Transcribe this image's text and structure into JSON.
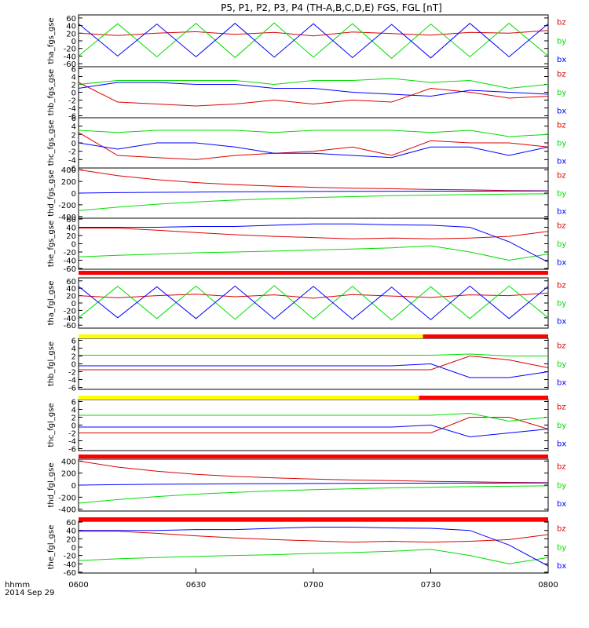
{
  "title": "P5, P1, P2, P3, P4 (TH-A,B,C,D,E) FGS, FGL [nT]",
  "time_axis": {
    "label_line1": "hhmm",
    "label_line2": "2014 Sep 29",
    "ticks": [
      "0600",
      "0630",
      "0700",
      "0730",
      "0800"
    ]
  },
  "legend_labels": [
    "bz",
    "by",
    "bx"
  ],
  "colors": {
    "bx": "#0000ff",
    "by": "#00dd00",
    "bz": "#dd0000",
    "axis": "#000000"
  },
  "chart_data": [
    {
      "type": "line",
      "ylabel": "tha_fgs_gse",
      "yticks": [
        "60",
        "40",
        "20",
        "0",
        "-20",
        "-40",
        "-60"
      ],
      "ylim": [
        -68,
        68
      ],
      "x": [
        "0600",
        "0610",
        "0620",
        "0630",
        "0640",
        "0650",
        "0700",
        "0710",
        "0720",
        "0730",
        "0740",
        "0750",
        "0800"
      ],
      "series": [
        {
          "name": "bz",
          "values": [
            20,
            14,
            20,
            24,
            17,
            22,
            13,
            23,
            19,
            15,
            22,
            20,
            27
          ]
        },
        {
          "name": "by",
          "values": [
            -40,
            45,
            -42,
            46,
            -44,
            47,
            -43,
            45,
            -46,
            44,
            -42,
            46,
            -40
          ]
        },
        {
          "name": "bx",
          "values": [
            45,
            -40,
            44,
            -42,
            46,
            -43,
            45,
            -44,
            43,
            -45,
            46,
            -42,
            45
          ]
        }
      ]
    },
    {
      "type": "line",
      "ylabel": "thb_fgs_gse",
      "yticks": [
        "6",
        "4",
        "2",
        "0",
        "-2",
        "-4",
        "-6"
      ],
      "ylim": [
        -6.5,
        6.5
      ],
      "x": [
        "0600",
        "0610",
        "0620",
        "0630",
        "0640",
        "0650",
        "0700",
        "0710",
        "0720",
        "0730",
        "0740",
        "0750",
        "0800"
      ],
      "series": [
        {
          "name": "bz",
          "values": [
            2.5,
            -2.5,
            -3,
            -3.5,
            -3,
            -2,
            -3,
            -2,
            -2.5,
            1,
            0,
            -1.5,
            -1
          ]
        },
        {
          "name": "by",
          "values": [
            2,
            3,
            3,
            3,
            3,
            2,
            3,
            3,
            3.5,
            2.5,
            3,
            1,
            2
          ]
        },
        {
          "name": "bx",
          "values": [
            1,
            2.5,
            2.5,
            2,
            2,
            1,
            1,
            0,
            -0.5,
            -1,
            0.5,
            0,
            -0.5
          ]
        }
      ]
    },
    {
      "type": "line",
      "ylabel": "thc_fgs_gse",
      "yticks": [
        "6",
        "4",
        "2",
        "0",
        "-2",
        "-4",
        "-6"
      ],
      "ylim": [
        -6,
        6
      ],
      "x": [
        "0600",
        "0610",
        "0620",
        "0630",
        "0640",
        "0650",
        "0700",
        "0710",
        "0720",
        "0730",
        "0740",
        "0750",
        "0800"
      ],
      "series": [
        {
          "name": "bz",
          "values": [
            2.5,
            -3,
            -3.5,
            -4,
            -3,
            -2.5,
            -2,
            -1,
            -3,
            0.5,
            0,
            0,
            -1
          ]
        },
        {
          "name": "by",
          "values": [
            3,
            2.5,
            3,
            3,
            3,
            2.5,
            3,
            3,
            3,
            2.5,
            3,
            1.5,
            2
          ]
        },
        {
          "name": "bx",
          "values": [
            0,
            -1.5,
            0,
            0,
            -1,
            -2.5,
            -2.5,
            -3,
            -3.5,
            -1,
            -1,
            -3,
            -1
          ]
        }
      ]
    },
    {
      "type": "line",
      "ylabel": "thd_fgs_gse",
      "yticks": [
        "400",
        "200",
        "0",
        "-200",
        "-400"
      ],
      "ylim": [
        -430,
        430
      ],
      "x": [
        "0600",
        "0610",
        "0620",
        "0630",
        "0640",
        "0650",
        "0700",
        "0710",
        "0720",
        "0730",
        "0740",
        "0750",
        "0800"
      ],
      "series": [
        {
          "name": "bz",
          "values": [
            400,
            300,
            230,
            180,
            145,
            120,
            100,
            85,
            75,
            62,
            55,
            45,
            40
          ]
        },
        {
          "name": "by",
          "values": [
            -300,
            -240,
            -190,
            -150,
            -120,
            -95,
            -75,
            -60,
            -45,
            -35,
            -25,
            -18,
            -12
          ]
        },
        {
          "name": "bx",
          "values": [
            0,
            8,
            14,
            18,
            22,
            25,
            28,
            30,
            32,
            33,
            34,
            35,
            36
          ]
        }
      ]
    },
    {
      "type": "line",
      "ylabel": "the_fgs_gse",
      "yticks": [
        "60",
        "40",
        "20",
        "0",
        "-20",
        "-40",
        "-60"
      ],
      "ylim": [
        -62,
        62
      ],
      "x": [
        "0600",
        "0610",
        "0620",
        "0630",
        "0640",
        "0650",
        "0700",
        "0710",
        "0720",
        "0730",
        "0740",
        "0750",
        "0800"
      ],
      "series": [
        {
          "name": "bz",
          "values": [
            38,
            38,
            33,
            27,
            22,
            18,
            15,
            12,
            14,
            12,
            14,
            18,
            30
          ]
        },
        {
          "name": "by",
          "values": [
            -32,
            -28,
            -25,
            -22,
            -20,
            -18,
            -15,
            -13,
            -10,
            -5,
            -20,
            -40,
            -25
          ]
        },
        {
          "name": "bx",
          "values": [
            40,
            40,
            40,
            42,
            42,
            45,
            48,
            48,
            46,
            45,
            40,
            5,
            -45
          ]
        }
      ]
    },
    {
      "type": "line",
      "ylabel": "tha_fgl_gse",
      "yticks": [
        "60",
        "40",
        "20",
        "0",
        "-20",
        "-40",
        "-60"
      ],
      "ylim": [
        -68,
        68
      ],
      "x": [
        "0600",
        "0610",
        "0620",
        "0630",
        "0640",
        "0650",
        "0700",
        "0710",
        "0720",
        "0730",
        "0740",
        "0750",
        "0800"
      ],
      "series": [
        {
          "name": "bz",
          "values": [
            20,
            14,
            20,
            24,
            17,
            22,
            13,
            23,
            19,
            15,
            22,
            20,
            27
          ]
        },
        {
          "name": "by",
          "values": [
            -40,
            45,
            -42,
            46,
            -44,
            47,
            -43,
            45,
            -46,
            44,
            -42,
            46,
            -40
          ]
        },
        {
          "name": "bx",
          "values": [
            45,
            -40,
            44,
            -42,
            46,
            -43,
            45,
            -44,
            43,
            -45,
            46,
            -42,
            45
          ]
        }
      ]
    },
    {
      "type": "line",
      "ylabel": "thb_fgl_gse",
      "yticks": [
        "6",
        "4",
        "2",
        "0",
        "-2",
        "-4",
        "-6"
      ],
      "ylim": [
        -6.5,
        6.5
      ],
      "x": [
        "0600",
        "0610",
        "0620",
        "0630",
        "0640",
        "0650",
        "0700",
        "0710",
        "0720",
        "0730",
        "0740",
        "0750",
        "0800"
      ],
      "series": [
        {
          "name": "bz",
          "values": [
            -1.5,
            -1.5,
            -1.5,
            -1.5,
            -1.5,
            -1.5,
            -1.5,
            -1.5,
            -1.5,
            -1.5,
            2,
            1,
            -1
          ]
        },
        {
          "name": "by",
          "values": [
            2.2,
            2.2,
            2.2,
            2.2,
            2.2,
            2.2,
            2.2,
            2.2,
            2.2,
            2.2,
            2.5,
            2,
            2
          ]
        },
        {
          "name": "bx",
          "values": [
            -0.5,
            -0.5,
            -0.5,
            -0.5,
            -0.5,
            -0.5,
            -0.5,
            -0.5,
            -0.5,
            0,
            -3.5,
            -3.5,
            -2
          ]
        }
      ]
    },
    {
      "type": "line",
      "ylabel": "thc_fgl_gse",
      "yticks": [
        "6",
        "4",
        "2",
        "0",
        "-2",
        "-4",
        "-6"
      ],
      "ylim": [
        -6.5,
        6.5
      ],
      "x": [
        "0600",
        "0610",
        "0620",
        "0630",
        "0640",
        "0650",
        "0700",
        "0710",
        "0720",
        "0730",
        "0740",
        "0750",
        "0800"
      ],
      "series": [
        {
          "name": "bz",
          "values": [
            -2,
            -2,
            -2,
            -2,
            -2,
            -2,
            -2,
            -2,
            -2,
            -2,
            2,
            2,
            -1
          ]
        },
        {
          "name": "by",
          "values": [
            2.5,
            2.5,
            2.5,
            2.5,
            2.5,
            2.5,
            2.5,
            2.5,
            2.5,
            2.5,
            3,
            1,
            2
          ]
        },
        {
          "name": "bx",
          "values": [
            -0.5,
            -0.5,
            -0.5,
            -0.5,
            -0.5,
            -0.5,
            -0.5,
            -0.5,
            -0.5,
            0,
            -3,
            -2,
            -1
          ]
        }
      ]
    },
    {
      "type": "line",
      "ylabel": "thd_fgl_gse",
      "yticks": [
        "400",
        "200",
        "0",
        "-200",
        "-400"
      ],
      "ylim": [
        -430,
        430
      ],
      "x": [
        "0600",
        "0610",
        "0620",
        "0630",
        "0640",
        "0650",
        "0700",
        "0710",
        "0720",
        "0730",
        "0740",
        "0750",
        "0800"
      ],
      "series": [
        {
          "name": "bz",
          "values": [
            400,
            300,
            230,
            180,
            145,
            120,
            100,
            85,
            75,
            62,
            55,
            45,
            40
          ]
        },
        {
          "name": "by",
          "values": [
            -300,
            -240,
            -190,
            -150,
            -120,
            -95,
            -75,
            -60,
            -45,
            -35,
            -25,
            -18,
            -12
          ]
        },
        {
          "name": "bx",
          "values": [
            0,
            8,
            14,
            18,
            22,
            25,
            28,
            30,
            32,
            33,
            34,
            35,
            36
          ]
        }
      ]
    },
    {
      "type": "line",
      "ylabel": "the_fgl_gse",
      "yticks": [
        "60",
        "40",
        "20",
        "0",
        "-20",
        "-40",
        "-60"
      ],
      "ylim": [
        -62,
        62
      ],
      "x": [
        "0600",
        "0610",
        "0620",
        "0630",
        "0640",
        "0650",
        "0700",
        "0710",
        "0720",
        "0730",
        "0740",
        "0750",
        "0800"
      ],
      "series": [
        {
          "name": "bz",
          "values": [
            38,
            38,
            33,
            27,
            22,
            18,
            15,
            12,
            14,
            12,
            14,
            18,
            30
          ]
        },
        {
          "name": "by",
          "values": [
            -32,
            -28,
            -25,
            -22,
            -20,
            -18,
            -15,
            -13,
            -10,
            -5,
            -20,
            -40,
            -25
          ]
        },
        {
          "name": "bx",
          "values": [
            40,
            40,
            40,
            42,
            42,
            45,
            48,
            48,
            46,
            45,
            40,
            5,
            -45
          ]
        }
      ]
    }
  ],
  "status_bars": [
    {
      "after_panel": 4,
      "segments": [
        {
          "from": "0600",
          "to": "0800",
          "color": "#ff0000"
        }
      ]
    },
    {
      "after_panel": 5,
      "segments": [
        {
          "from": "0600",
          "to": "0728",
          "color": "#ffff00"
        },
        {
          "from": "0728",
          "to": "0800",
          "color": "#ff0000"
        }
      ]
    },
    {
      "after_panel": 6,
      "segments": [
        {
          "from": "0600",
          "to": "0727",
          "color": "#ffff00"
        },
        {
          "from": "0727",
          "to": "0800",
          "color": "#ff0000"
        }
      ]
    },
    {
      "after_panel": 7,
      "segments": [
        {
          "from": "0600",
          "to": "0800",
          "color": "#ff0000"
        }
      ]
    },
    {
      "after_panel": 8,
      "segments": [
        {
          "from": "0600",
          "to": "0800",
          "color": "#ff0000"
        }
      ]
    }
  ]
}
